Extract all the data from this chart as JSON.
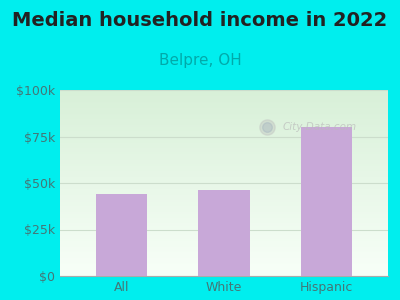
{
  "title": "Median household income in 2022",
  "subtitle": "Belpre, OH",
  "categories": [
    "All",
    "White",
    "Hispanic"
  ],
  "values": [
    44000,
    46000,
    80000
  ],
  "bar_color": "#c8a8d8",
  "title_fontsize": 14,
  "subtitle_fontsize": 11,
  "subtitle_color": "#00aaaa",
  "outer_bg": "#00eeee",
  "grad_top_color": "#d8f0d8",
  "grad_bot_color": "#f8fff8",
  "tick_label_color": "#447777",
  "tick_fontsize": 9,
  "ylim": [
    0,
    100000
  ],
  "yticks": [
    0,
    25000,
    50000,
    75000,
    100000
  ],
  "ytick_labels": [
    "$0",
    "$25k",
    "$50k",
    "$75k",
    "$100k"
  ],
  "watermark": "City-Data.com",
  "watermark_color": "#bbbbbb",
  "grid_color": "#ccddcc"
}
